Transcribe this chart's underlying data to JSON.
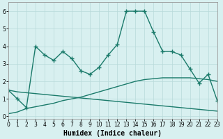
{
  "line1_x": [
    0,
    1,
    2,
    3,
    4,
    5,
    6,
    7,
    8,
    9,
    10,
    11,
    12,
    13,
    14,
    15,
    16,
    17,
    18,
    19,
    20,
    21,
    22,
    23
  ],
  "line1_y": [
    1.5,
    1.0,
    0.5,
    4.0,
    3.5,
    3.2,
    3.7,
    3.3,
    2.6,
    2.4,
    2.8,
    3.5,
    4.1,
    6.0,
    6.0,
    6.0,
    4.8,
    3.7,
    3.7,
    3.5,
    2.7,
    1.9,
    2.4,
    0.9
  ],
  "line2_x": [
    0,
    1,
    2,
    3,
    4,
    5,
    6,
    7,
    8,
    9,
    10,
    11,
    12,
    13,
    14,
    15,
    16,
    17,
    18,
    19,
    20,
    21,
    22,
    23
  ],
  "line2_y": [
    0.15,
    0.25,
    0.45,
    0.55,
    0.65,
    0.75,
    0.9,
    1.0,
    1.1,
    1.25,
    1.4,
    1.55,
    1.7,
    1.85,
    2.0,
    2.1,
    2.15,
    2.2,
    2.2,
    2.2,
    2.2,
    2.15,
    2.1,
    2.0
  ],
  "line3_x": [
    0,
    1,
    2,
    3,
    4,
    5,
    6,
    7,
    8,
    9,
    10,
    11,
    12,
    13,
    14,
    15,
    16,
    17,
    18,
    19,
    20,
    21,
    22,
    23
  ],
  "line3_y": [
    1.5,
    1.4,
    1.35,
    1.3,
    1.25,
    1.2,
    1.15,
    1.1,
    1.05,
    1.0,
    0.95,
    0.9,
    0.85,
    0.8,
    0.75,
    0.7,
    0.65,
    0.6,
    0.55,
    0.5,
    0.45,
    0.4,
    0.35,
    0.3
  ],
  "line_color": "#1a7a6a",
  "bg_color": "#d8f0f0",
  "grid_color": "#b8dada",
  "xlabel": "Humidex (Indice chaleur)",
  "xlim": [
    0,
    23
  ],
  "ylim": [
    -0.15,
    6.5
  ],
  "yticks": [
    0,
    1,
    2,
    3,
    4,
    5,
    6
  ],
  "xticks": [
    0,
    1,
    2,
    3,
    4,
    5,
    6,
    7,
    8,
    9,
    10,
    11,
    12,
    13,
    14,
    15,
    16,
    17,
    18,
    19,
    20,
    21,
    22,
    23
  ],
  "marker": "+",
  "markersize": 4,
  "linewidth": 1.0,
  "xlabel_fontsize": 7,
  "tick_fontsize": 5.5
}
